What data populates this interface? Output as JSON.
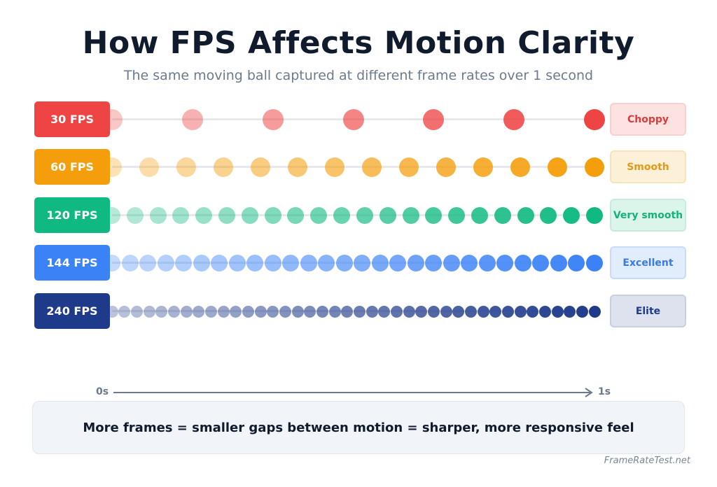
{
  "header": {
    "title": "How FPS Affects Motion Clarity",
    "subtitle": "The same moving ball captured at different frame rates over 1 second"
  },
  "rows": [
    {
      "fps_label": "30 FPS",
      "quality": "Choppy",
      "dot_count": 7,
      "color": "#ef4444",
      "badge_bg": "#fde2e2",
      "badge_border": "#f9d0d0",
      "badge_text": "#dc3b3b"
    },
    {
      "fps_label": "60 FPS",
      "quality": "Smooth",
      "dot_count": 14,
      "color": "#f59e0b",
      "badge_bg": "#fdf0d8",
      "badge_border": "#f8e2b8",
      "badge_text": "#e39a1a"
    },
    {
      "fps_label": "120 FPS",
      "quality": "Very smooth",
      "dot_count": 22,
      "color": "#10b981",
      "badge_bg": "#dcf5ea",
      "badge_border": "#c5ecdb",
      "badge_text": "#16b07a"
    },
    {
      "fps_label": "144 FPS",
      "quality": "Excellent",
      "dot_count": 28,
      "color": "#3b82f6",
      "badge_bg": "#e1ecfd",
      "badge_border": "#c9dbfa",
      "badge_text": "#3b7be0"
    },
    {
      "fps_label": "240 FPS",
      "quality": "Elite",
      "dot_count": 40,
      "color": "#1e3a8a",
      "badge_bg": "#dde2ee",
      "badge_border": "#c8cfe0",
      "badge_text": "#1e3a8a"
    }
  ],
  "axis": {
    "start": "0s",
    "end": "1s"
  },
  "summary": "More frames = smaller gaps between motion = sharper, more responsive feel",
  "footer": "FrameRateTest.net"
}
